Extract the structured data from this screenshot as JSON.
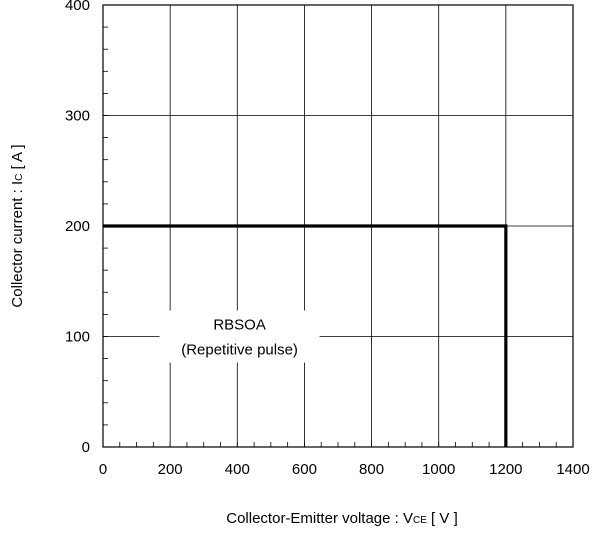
{
  "chart_data": {
    "type": "line",
    "title": "",
    "xlabel": "Collector-Emitter voltage : V",
    "xlabel_sub": "CE",
    "xlabel_unit": " [ V ]",
    "ylabel": "Collector current : I",
    "ylabel_sub": "C",
    "ylabel_unit": " [ A ]",
    "xlim": [
      0,
      1400
    ],
    "ylim": [
      0,
      400
    ],
    "xticks": [
      0,
      200,
      400,
      600,
      800,
      1000,
      1200,
      1400
    ],
    "yticks": [
      0,
      100,
      200,
      300,
      400
    ],
    "x_minor_step": 50,
    "y_minor_step": 20,
    "grid": true,
    "series": [
      {
        "name": "",
        "x": [
          0,
          1200,
          1200
        ],
        "y": [
          200,
          200,
          0
        ],
        "color": "#000000"
      }
    ],
    "annotations": [
      "RBSOA",
      "(Repetitive pulse)"
    ],
    "annotation_anchor": [
      800,
      100
    ]
  }
}
